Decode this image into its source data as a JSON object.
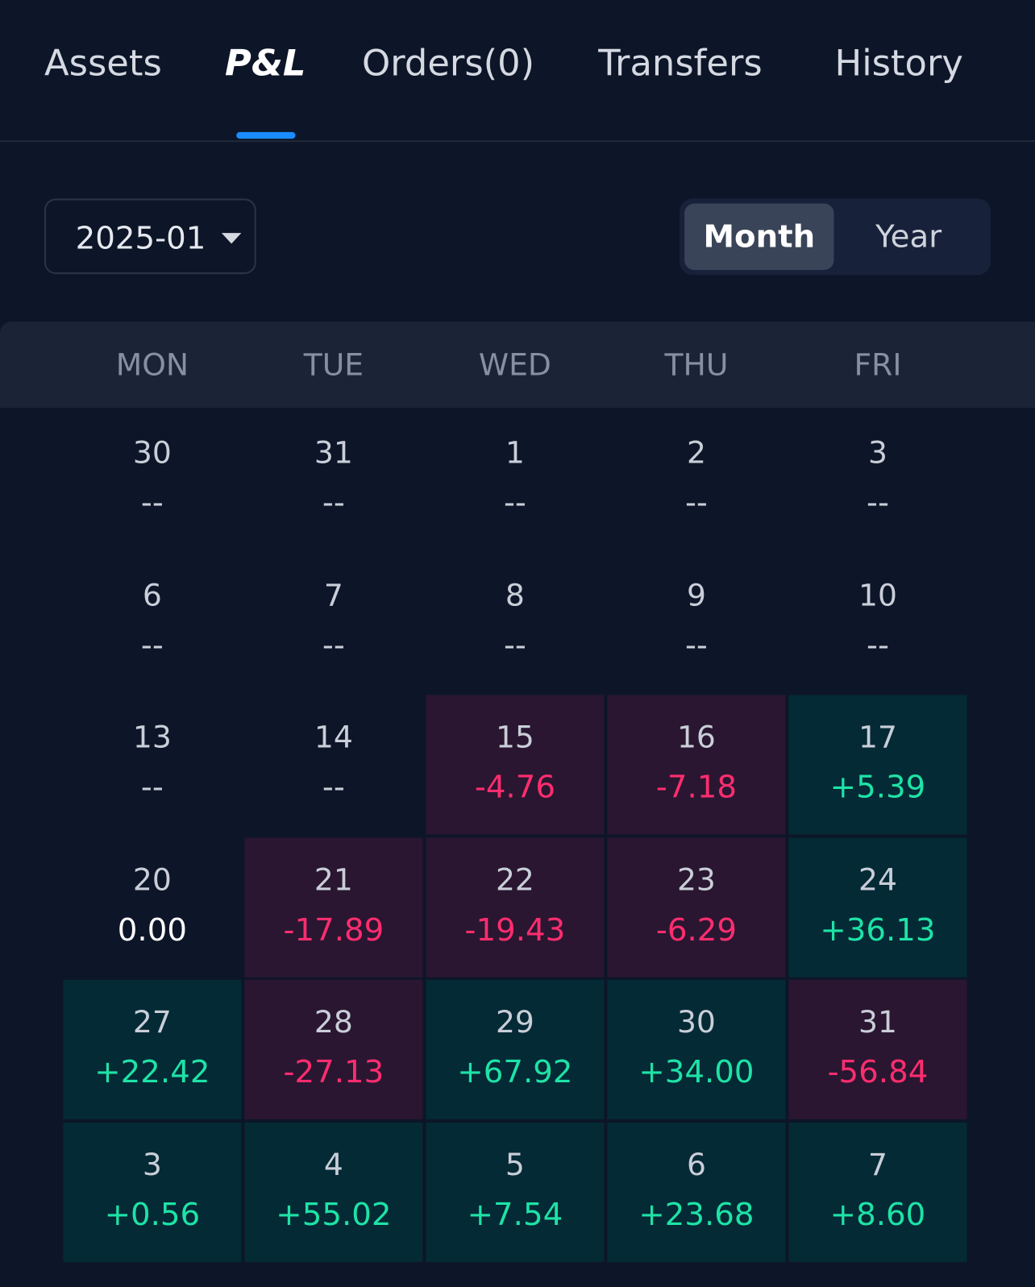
{
  "tabs": [
    "Assets",
    "P&L",
    "Orders(0)",
    "Transfers",
    "History"
  ],
  "active_tab": 1,
  "date_selector": "2025-01",
  "toggle": {
    "options": [
      "Month",
      "Year"
    ],
    "active": 0
  },
  "calendar": {
    "weekdays": [
      "MON",
      "TUE",
      "WED",
      "THU",
      "FRI"
    ],
    "weeks": [
      [
        {
          "day": "30",
          "pnl": "--"
        },
        {
          "day": "31",
          "pnl": "--"
        },
        {
          "day": "1",
          "pnl": "--"
        },
        {
          "day": "2",
          "pnl": "--"
        },
        {
          "day": "3",
          "pnl": "--"
        }
      ],
      [
        {
          "day": "6",
          "pnl": "--"
        },
        {
          "day": "7",
          "pnl": "--"
        },
        {
          "day": "8",
          "pnl": "--"
        },
        {
          "day": "9",
          "pnl": "--"
        },
        {
          "day": "10",
          "pnl": "--"
        }
      ],
      [
        {
          "day": "13",
          "pnl": "--"
        },
        {
          "day": "14",
          "pnl": "--"
        },
        {
          "day": "15",
          "pnl": "-4.76"
        },
        {
          "day": "16",
          "pnl": "-7.18"
        },
        {
          "day": "17",
          "pnl": "+5.39"
        }
      ],
      [
        {
          "day": "20",
          "pnl": "0.00"
        },
        {
          "day": "21",
          "pnl": "-17.89"
        },
        {
          "day": "22",
          "pnl": "-19.43"
        },
        {
          "day": "23",
          "pnl": "-6.29"
        },
        {
          "day": "24",
          "pnl": "+36.13"
        }
      ],
      [
        {
          "day": "27",
          "pnl": "+22.42"
        },
        {
          "day": "28",
          "pnl": "-27.13"
        },
        {
          "day": "29",
          "pnl": "+67.92"
        },
        {
          "day": "30",
          "pnl": "+34.00"
        },
        {
          "day": "31",
          "pnl": "-56.84"
        }
      ],
      [
        {
          "day": "3",
          "pnl": "+0.56"
        },
        {
          "day": "4",
          "pnl": "+55.02"
        },
        {
          "day": "5",
          "pnl": "+7.54"
        },
        {
          "day": "6",
          "pnl": "+23.68"
        },
        {
          "day": "7",
          "pnl": "+8.60"
        }
      ]
    ]
  }
}
